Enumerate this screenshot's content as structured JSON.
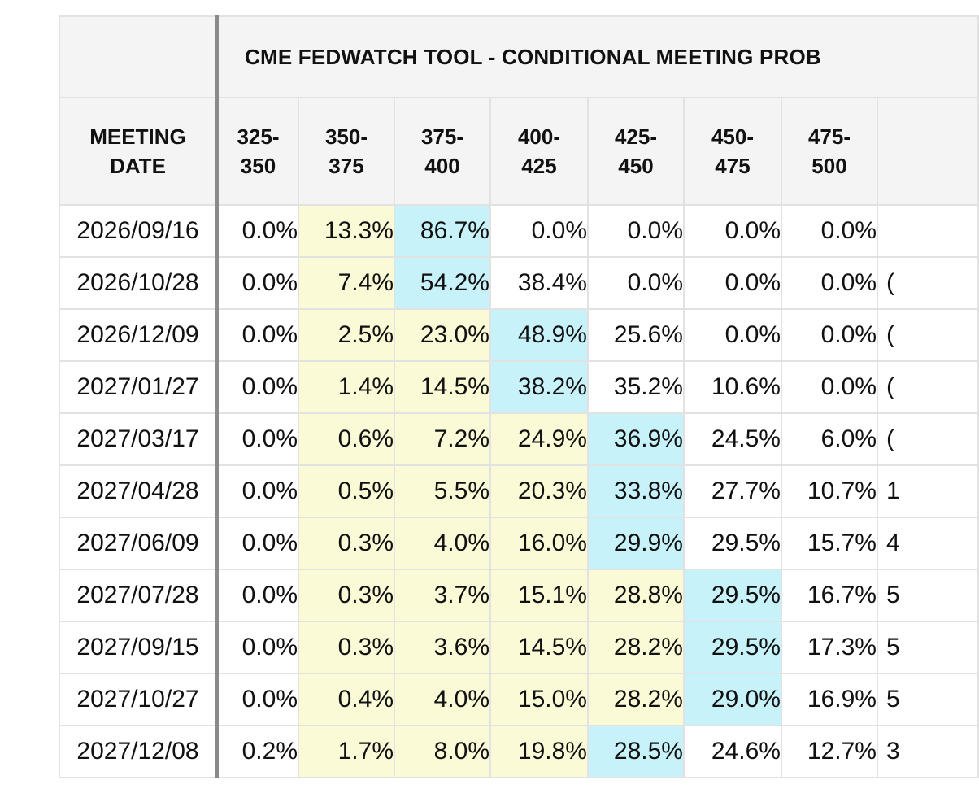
{
  "table": {
    "title": "CME FEDWATCH TOOL - CONDITIONAL MEETING PROB",
    "date_header": [
      "MEETING",
      "DATE"
    ],
    "columns": [
      {
        "top": "325-",
        "bottom": "350"
      },
      {
        "top": "350-",
        "bottom": "375"
      },
      {
        "top": "375-",
        "bottom": "400"
      },
      {
        "top": "400-",
        "bottom": "425"
      },
      {
        "top": "425-",
        "bottom": "450"
      },
      {
        "top": "450-",
        "bottom": "475"
      },
      {
        "top": "475-",
        "bottom": "500"
      },
      {
        "top": "",
        "bottom": ""
      }
    ],
    "rows": [
      {
        "date": "2026/09/16",
        "values": [
          "0.0%",
          "13.3%",
          "86.7%",
          "0.0%",
          "0.0%",
          "0.0%",
          "0.0%",
          ""
        ],
        "highlight": [
          "",
          "y",
          "c",
          "",
          "",
          "",
          "",
          ""
        ]
      },
      {
        "date": "2026/10/28",
        "values": [
          "0.0%",
          "7.4%",
          "54.2%",
          "38.4%",
          "0.0%",
          "0.0%",
          "0.0%",
          "("
        ],
        "highlight": [
          "",
          "y",
          "c",
          "",
          "",
          "",
          "",
          ""
        ]
      },
      {
        "date": "2026/12/09",
        "values": [
          "0.0%",
          "2.5%",
          "23.0%",
          "48.9%",
          "25.6%",
          "0.0%",
          "0.0%",
          "("
        ],
        "highlight": [
          "",
          "y",
          "y",
          "c",
          "",
          "",
          "",
          ""
        ]
      },
      {
        "date": "2027/01/27",
        "values": [
          "0.0%",
          "1.4%",
          "14.5%",
          "38.2%",
          "35.2%",
          "10.6%",
          "0.0%",
          "("
        ],
        "highlight": [
          "",
          "y",
          "y",
          "c",
          "",
          "",
          "",
          ""
        ]
      },
      {
        "date": "2027/03/17",
        "values": [
          "0.0%",
          "0.6%",
          "7.2%",
          "24.9%",
          "36.9%",
          "24.5%",
          "6.0%",
          "("
        ],
        "highlight": [
          "",
          "y",
          "y",
          "y",
          "c",
          "",
          "",
          ""
        ]
      },
      {
        "date": "2027/04/28",
        "values": [
          "0.0%",
          "0.5%",
          "5.5%",
          "20.3%",
          "33.8%",
          "27.7%",
          "10.7%",
          "1"
        ],
        "highlight": [
          "",
          "y",
          "y",
          "y",
          "c",
          "",
          "",
          ""
        ]
      },
      {
        "date": "2027/06/09",
        "values": [
          "0.0%",
          "0.3%",
          "4.0%",
          "16.0%",
          "29.9%",
          "29.5%",
          "15.7%",
          "4"
        ],
        "highlight": [
          "",
          "y",
          "y",
          "y",
          "c",
          "",
          "",
          ""
        ]
      },
      {
        "date": "2027/07/28",
        "values": [
          "0.0%",
          "0.3%",
          "3.7%",
          "15.1%",
          "28.8%",
          "29.5%",
          "16.7%",
          "5"
        ],
        "highlight": [
          "",
          "y",
          "y",
          "y",
          "y",
          "c",
          "",
          ""
        ]
      },
      {
        "date": "2027/09/15",
        "values": [
          "0.0%",
          "0.3%",
          "3.6%",
          "14.5%",
          "28.2%",
          "29.5%",
          "17.3%",
          "5"
        ],
        "highlight": [
          "",
          "y",
          "y",
          "y",
          "y",
          "c",
          "",
          ""
        ]
      },
      {
        "date": "2027/10/27",
        "values": [
          "0.0%",
          "0.4%",
          "4.0%",
          "15.0%",
          "28.2%",
          "29.0%",
          "16.9%",
          "5"
        ],
        "highlight": [
          "",
          "y",
          "y",
          "y",
          "y",
          "c",
          "",
          ""
        ]
      },
      {
        "date": "2027/12/08",
        "values": [
          "0.2%",
          "1.7%",
          "8.0%",
          "19.8%",
          "28.5%",
          "24.6%",
          "12.7%",
          "3"
        ],
        "highlight": [
          "",
          "y",
          "y",
          "y",
          "c",
          "",
          "",
          ""
        ]
      }
    ]
  },
  "colors": {
    "header_bg": "#f4f4f4",
    "border": "#e2e2e2",
    "divider": "#8a8a8a",
    "highlight_yellow": "#fafad6",
    "highlight_cyan": "#c7f2fa"
  }
}
